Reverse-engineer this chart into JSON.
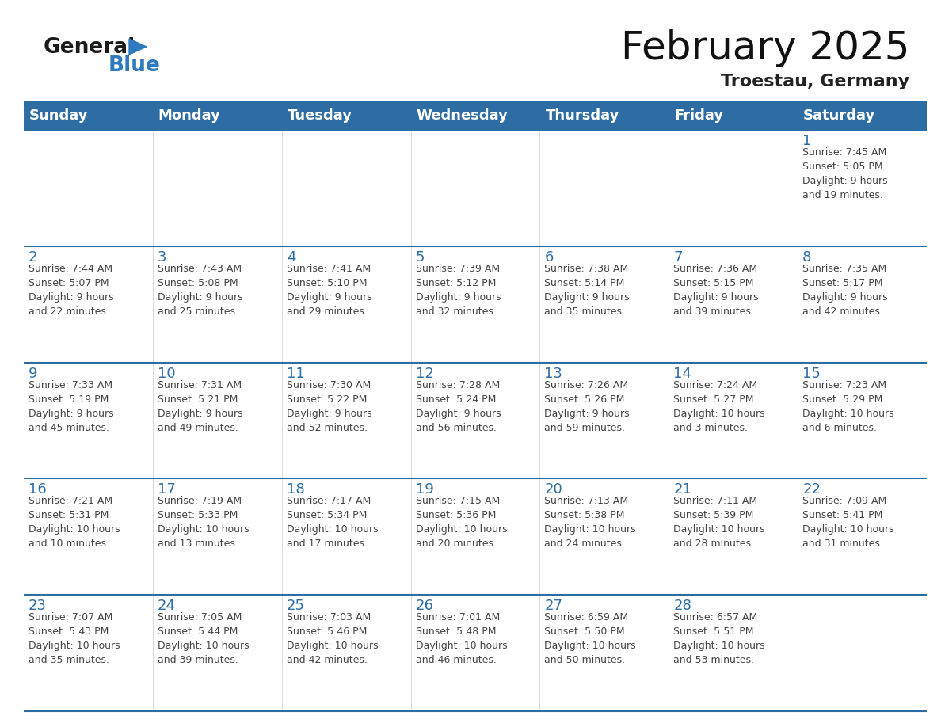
{
  "title": "February 2025",
  "subtitle": "Troestau, Germany",
  "header_bg_color": "#2d6da3",
  "header_text_color": "#ffffff",
  "cell_bg_color": "#ffffff",
  "day_num_color": "#2d6da3",
  "info_text_color": "#444444",
  "border_color": "#2d6da3",
  "grid_color": "#cccccc",
  "days_of_week": [
    "Sunday",
    "Monday",
    "Tuesday",
    "Wednesday",
    "Thursday",
    "Friday",
    "Saturday"
  ],
  "calendar": [
    [
      {
        "day": "",
        "info": ""
      },
      {
        "day": "",
        "info": ""
      },
      {
        "day": "",
        "info": ""
      },
      {
        "day": "",
        "info": ""
      },
      {
        "day": "",
        "info": ""
      },
      {
        "day": "",
        "info": ""
      },
      {
        "day": "1",
        "info": "Sunrise: 7:45 AM\nSunset: 5:05 PM\nDaylight: 9 hours\nand 19 minutes."
      }
    ],
    [
      {
        "day": "2",
        "info": "Sunrise: 7:44 AM\nSunset: 5:07 PM\nDaylight: 9 hours\nand 22 minutes."
      },
      {
        "day": "3",
        "info": "Sunrise: 7:43 AM\nSunset: 5:08 PM\nDaylight: 9 hours\nand 25 minutes."
      },
      {
        "day": "4",
        "info": "Sunrise: 7:41 AM\nSunset: 5:10 PM\nDaylight: 9 hours\nand 29 minutes."
      },
      {
        "day": "5",
        "info": "Sunrise: 7:39 AM\nSunset: 5:12 PM\nDaylight: 9 hours\nand 32 minutes."
      },
      {
        "day": "6",
        "info": "Sunrise: 7:38 AM\nSunset: 5:14 PM\nDaylight: 9 hours\nand 35 minutes."
      },
      {
        "day": "7",
        "info": "Sunrise: 7:36 AM\nSunset: 5:15 PM\nDaylight: 9 hours\nand 39 minutes."
      },
      {
        "day": "8",
        "info": "Sunrise: 7:35 AM\nSunset: 5:17 PM\nDaylight: 9 hours\nand 42 minutes."
      }
    ],
    [
      {
        "day": "9",
        "info": "Sunrise: 7:33 AM\nSunset: 5:19 PM\nDaylight: 9 hours\nand 45 minutes."
      },
      {
        "day": "10",
        "info": "Sunrise: 7:31 AM\nSunset: 5:21 PM\nDaylight: 9 hours\nand 49 minutes."
      },
      {
        "day": "11",
        "info": "Sunrise: 7:30 AM\nSunset: 5:22 PM\nDaylight: 9 hours\nand 52 minutes."
      },
      {
        "day": "12",
        "info": "Sunrise: 7:28 AM\nSunset: 5:24 PM\nDaylight: 9 hours\nand 56 minutes."
      },
      {
        "day": "13",
        "info": "Sunrise: 7:26 AM\nSunset: 5:26 PM\nDaylight: 9 hours\nand 59 minutes."
      },
      {
        "day": "14",
        "info": "Sunrise: 7:24 AM\nSunset: 5:27 PM\nDaylight: 10 hours\nand 3 minutes."
      },
      {
        "day": "15",
        "info": "Sunrise: 7:23 AM\nSunset: 5:29 PM\nDaylight: 10 hours\nand 6 minutes."
      }
    ],
    [
      {
        "day": "16",
        "info": "Sunrise: 7:21 AM\nSunset: 5:31 PM\nDaylight: 10 hours\nand 10 minutes."
      },
      {
        "day": "17",
        "info": "Sunrise: 7:19 AM\nSunset: 5:33 PM\nDaylight: 10 hours\nand 13 minutes."
      },
      {
        "day": "18",
        "info": "Sunrise: 7:17 AM\nSunset: 5:34 PM\nDaylight: 10 hours\nand 17 minutes."
      },
      {
        "day": "19",
        "info": "Sunrise: 7:15 AM\nSunset: 5:36 PM\nDaylight: 10 hours\nand 20 minutes."
      },
      {
        "day": "20",
        "info": "Sunrise: 7:13 AM\nSunset: 5:38 PM\nDaylight: 10 hours\nand 24 minutes."
      },
      {
        "day": "21",
        "info": "Sunrise: 7:11 AM\nSunset: 5:39 PM\nDaylight: 10 hours\nand 28 minutes."
      },
      {
        "day": "22",
        "info": "Sunrise: 7:09 AM\nSunset: 5:41 PM\nDaylight: 10 hours\nand 31 minutes."
      }
    ],
    [
      {
        "day": "23",
        "info": "Sunrise: 7:07 AM\nSunset: 5:43 PM\nDaylight: 10 hours\nand 35 minutes."
      },
      {
        "day": "24",
        "info": "Sunrise: 7:05 AM\nSunset: 5:44 PM\nDaylight: 10 hours\nand 39 minutes."
      },
      {
        "day": "25",
        "info": "Sunrise: 7:03 AM\nSunset: 5:46 PM\nDaylight: 10 hours\nand 42 minutes."
      },
      {
        "day": "26",
        "info": "Sunrise: 7:01 AM\nSunset: 5:48 PM\nDaylight: 10 hours\nand 46 minutes."
      },
      {
        "day": "27",
        "info": "Sunrise: 6:59 AM\nSunset: 5:50 PM\nDaylight: 10 hours\nand 50 minutes."
      },
      {
        "day": "28",
        "info": "Sunrise: 6:57 AM\nSunset: 5:51 PM\nDaylight: 10 hours\nand 53 minutes."
      },
      {
        "day": "",
        "info": ""
      }
    ]
  ],
  "logo_general_color": "#1a1a1a",
  "logo_blue_color": "#2e7abf",
  "logo_triangle_color": "#2e7abf",
  "title_fontsize": 36,
  "subtitle_fontsize": 16,
  "header_fontsize": 13,
  "day_num_fontsize": 13,
  "info_fontsize": 9,
  "figsize": [
    11.88,
    9.18
  ],
  "dpi": 100
}
